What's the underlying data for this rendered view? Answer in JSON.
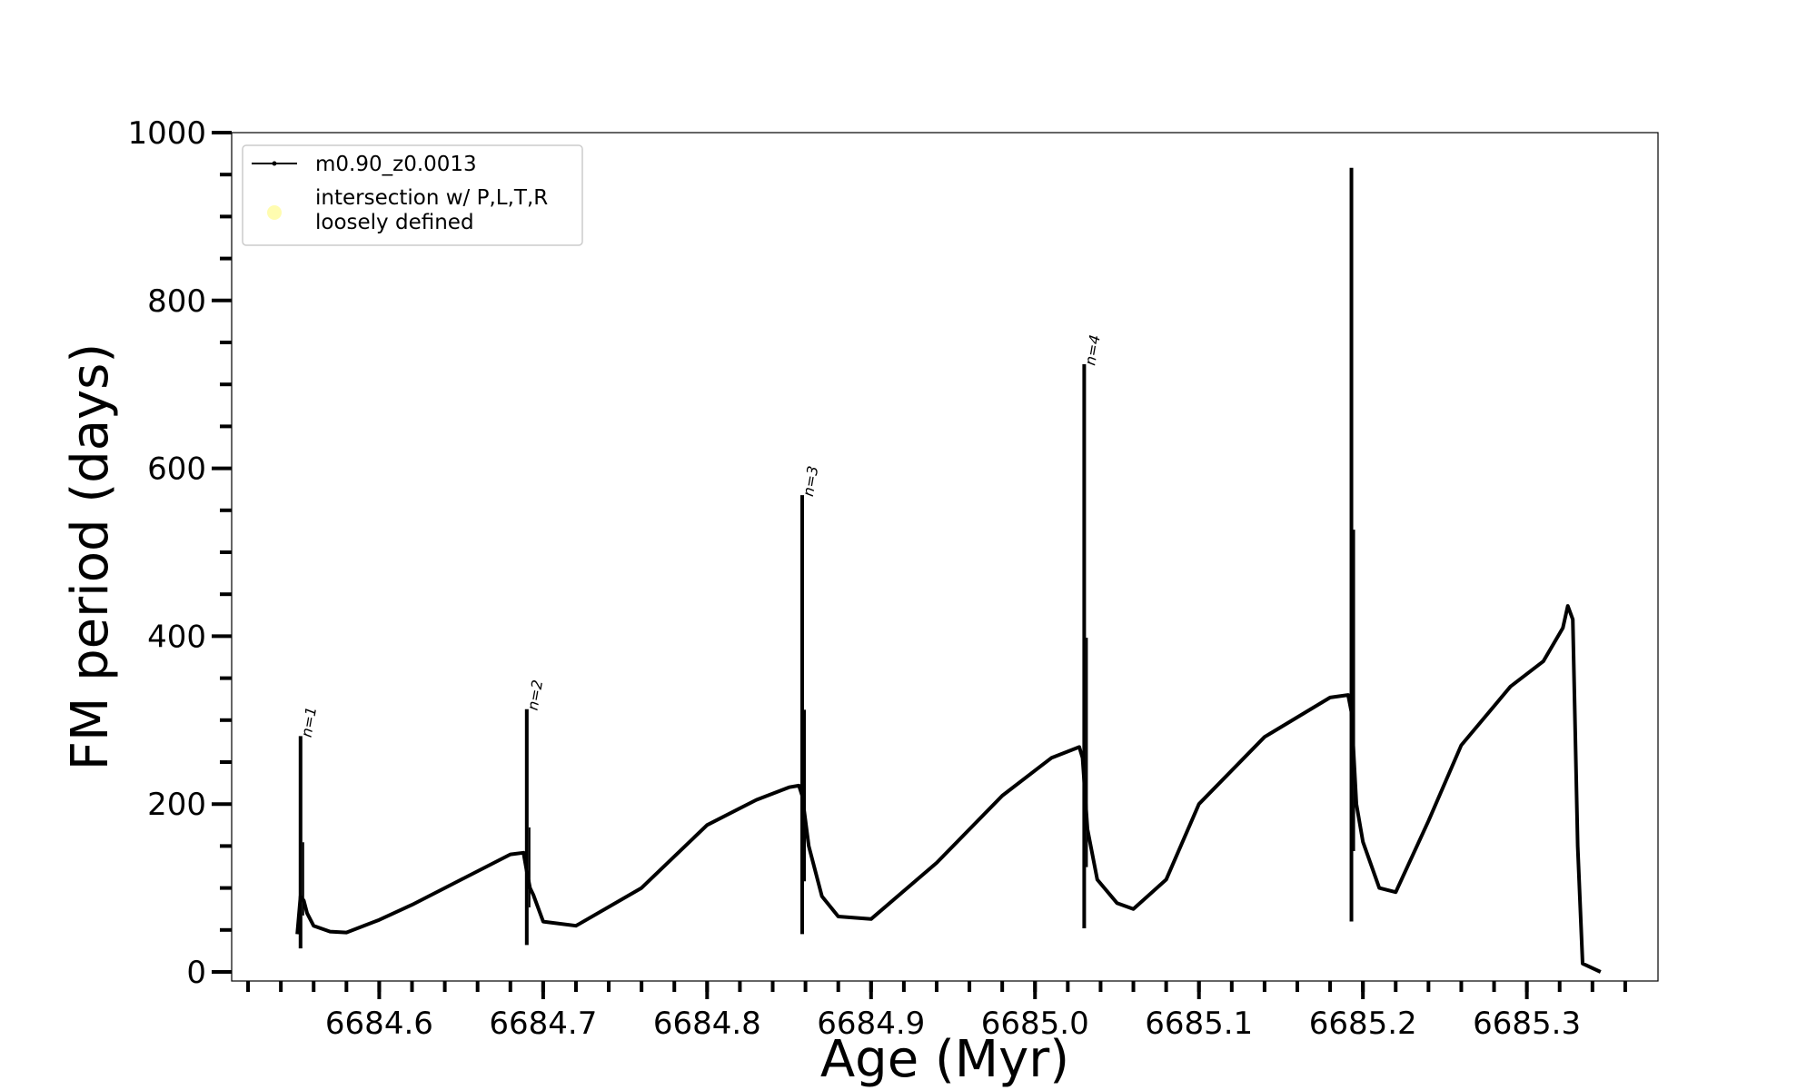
{
  "chart_data": {
    "type": "line",
    "title": "",
    "xlabel": "Age (Myr)",
    "ylabel": "FM period (days)",
    "xlim": [
      6684.51,
      6685.38
    ],
    "ylim": [
      0,
      1000
    ],
    "x_ticks": [
      "6684.6",
      "6684.7",
      "6684.8",
      "6684.9",
      "6685.0",
      "6685.1",
      "6685.2",
      "6685.3"
    ],
    "y_ticks": [
      "0",
      "200",
      "400",
      "600",
      "800",
      "1000"
    ],
    "grid": false,
    "legend_position": "upper-left",
    "legend": {
      "line_label": "m0.90_z0.0013",
      "marker_label_line1": "intersection w/ P,L,T,R",
      "marker_label_line2": "loosely defined",
      "marker_color": "#fffcb0"
    },
    "series": [
      {
        "name": "m0.90_z0.0013",
        "color": "#000000",
        "x": [
          6684.55,
          6684.552,
          6684.554,
          6684.556,
          6684.56,
          6684.57,
          6684.58,
          6684.6,
          6684.62,
          6684.65,
          6684.68,
          6684.688,
          6684.69,
          6684.692,
          6684.694,
          6684.7,
          6684.72,
          6684.76,
          6684.8,
          6684.83,
          6684.85,
          6684.856,
          6684.858,
          6684.862,
          6684.87,
          6684.88,
          6684.9,
          6684.94,
          6684.98,
          6685.01,
          6685.027,
          6685.029,
          6685.032,
          6685.038,
          6685.05,
          6685.06,
          6685.08,
          6685.1,
          6685.14,
          6685.18,
          6685.191,
          6685.193,
          6685.196,
          6685.2,
          6685.21,
          6685.22,
          6685.24,
          6685.26,
          6685.29,
          6685.31,
          6685.322,
          6685.325,
          6685.328,
          6685.331,
          6685.334,
          6685.345
        ],
        "y": [
          45,
          90,
          85,
          70,
          55,
          48,
          47,
          62,
          80,
          110,
          140,
          142,
          120,
          100,
          92,
          60,
          55,
          100,
          175,
          205,
          220,
          222,
          210,
          150,
          90,
          66,
          63,
          130,
          210,
          255,
          268,
          255,
          170,
          110,
          82,
          75,
          110,
          200,
          280,
          327,
          330,
          310,
          200,
          155,
          100,
          95,
          180,
          270,
          340,
          370,
          410,
          436,
          420,
          150,
          10,
          0
        ]
      }
    ],
    "spikes": [
      {
        "x": 6684.552,
        "ymin": 28,
        "ymax": 281
      },
      {
        "x": 6684.69,
        "ymin": 32,
        "ymax": 313
      },
      {
        "x": 6684.858,
        "ymin": 45,
        "ymax": 568
      },
      {
        "x": 6685.03,
        "ymin": 52,
        "ymax": 724
      },
      {
        "x": 6685.193,
        "ymin": 60,
        "ymax": 958
      }
    ],
    "annotations": [
      {
        "text": "n=1",
        "x": 6684.554,
        "y": 281
      },
      {
        "text": "n=2",
        "x": 6684.692,
        "y": 313
      },
      {
        "text": "n=3",
        "x": 6684.86,
        "y": 568
      },
      {
        "text": "n=4",
        "x": 6685.032,
        "y": 724
      }
    ]
  }
}
